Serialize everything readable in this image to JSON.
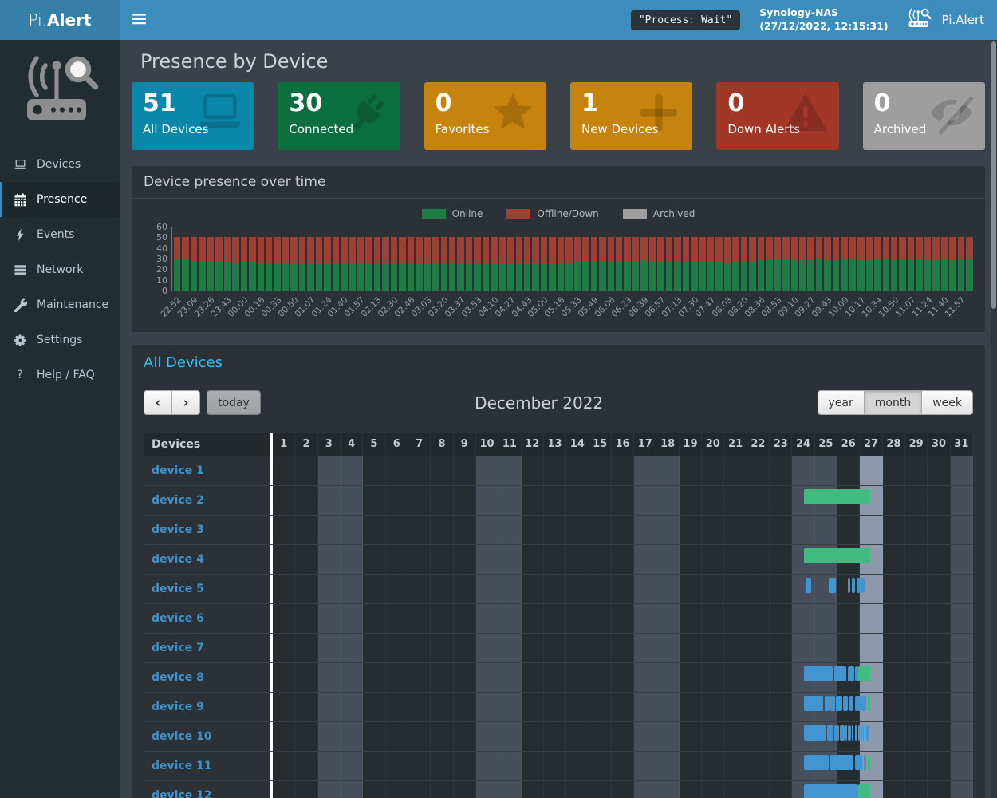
{
  "navbar": {
    "brand": {
      "prefix": "Pi.",
      "bold": "Alert"
    },
    "menu_icon": "hamburger-icon",
    "process_status": "\"Process: Wait\"",
    "host": {
      "name": "Synology-NAS",
      "datetime": "(27/12/2022, 12:15:31)"
    },
    "app": {
      "icon": "router-search-icon",
      "label": "Pi.Alert"
    }
  },
  "sidebar": {
    "logo_icon": "router-search-logo",
    "items": [
      {
        "key": "devices",
        "label": "Devices",
        "icon": "laptop-icon",
        "active": false
      },
      {
        "key": "presence",
        "label": "Presence",
        "icon": "calendar-icon",
        "active": true
      },
      {
        "key": "events",
        "label": "Events",
        "icon": "bolt-icon",
        "active": false
      },
      {
        "key": "network",
        "label": "Network",
        "icon": "server-icon",
        "active": false
      },
      {
        "key": "maintenance",
        "label": "Maintenance",
        "icon": "wrench-icon",
        "active": false
      },
      {
        "key": "settings",
        "label": "Settings",
        "icon": "gear-icon",
        "active": false
      },
      {
        "key": "help-faq",
        "label": "Help / FAQ",
        "icon": "question-icon",
        "active": false
      }
    ]
  },
  "page": {
    "title": "Presence by Device"
  },
  "infoboxes": [
    {
      "key": "all-devices",
      "value": "51",
      "label": "All Devices",
      "color": "#0a87a9",
      "icon": "laptop-icon"
    },
    {
      "key": "connected",
      "value": "30",
      "label": "Connected",
      "color": "#0b6e3e",
      "icon": "plug-icon"
    },
    {
      "key": "favorites",
      "value": "0",
      "label": "Favorites",
      "color": "#c6830e",
      "icon": "star-icon"
    },
    {
      "key": "new-devices",
      "value": "1",
      "label": "New Devices",
      "color": "#c6830e",
      "icon": "plus-icon"
    },
    {
      "key": "down-alerts",
      "value": "0",
      "label": "Down Alerts",
      "color": "#a23627",
      "icon": "warning-icon"
    },
    {
      "key": "archived",
      "value": "0",
      "label": "Archived",
      "color": "#9e9e9e",
      "icon": "eye-slash-icon"
    }
  ],
  "presence_chart": {
    "title": "Device presence over time",
    "legend": [
      {
        "label": "Online",
        "color": "#1e7d45"
      },
      {
        "label": "Offline/Down",
        "color": "#9e4034"
      },
      {
        "label": "Archived",
        "color": "#9e9e9e"
      }
    ],
    "chart_data": {
      "type": "bar",
      "stacked": true,
      "ylim": [
        0,
        60
      ],
      "y_ticks": [
        60,
        50,
        40,
        30,
        20,
        10,
        0
      ],
      "bars_per_label": 2,
      "x_labels": [
        "22:52",
        "23:09",
        "23:26",
        "23:43",
        "00:00",
        "00:16",
        "00:33",
        "00:50",
        "01:07",
        "01:24",
        "01:40",
        "01:57",
        "02:13",
        "02:30",
        "02:46",
        "03:03",
        "03:20",
        "03:37",
        "03:53",
        "04:10",
        "04:27",
        "04:43",
        "05:00",
        "05:16",
        "05:33",
        "05:49",
        "06:06",
        "06:23",
        "06:39",
        "06:57",
        "07:13",
        "07:30",
        "07:47",
        "08:03",
        "08:20",
        "08:36",
        "08:53",
        "09:10",
        "09:27",
        "09:43",
        "10:00",
        "10:17",
        "10:34",
        "10:50",
        "11:07",
        "11:24",
        "11:40",
        "11:57"
      ],
      "series": [
        {
          "name": "Online",
          "color": "#1e7d45",
          "values": [
            29,
            29,
            28,
            28,
            28,
            28,
            28,
            27,
            28,
            28,
            27,
            27,
            27,
            27,
            27,
            27,
            27,
            27,
            27,
            27,
            27,
            27,
            27,
            27,
            27,
            27,
            26,
            27,
            27,
            27,
            27,
            26,
            27,
            27,
            27,
            26,
            26,
            26,
            27,
            27,
            27,
            27,
            27,
            27,
            27,
            27,
            27,
            27,
            28,
            28,
            28,
            28,
            28,
            28,
            28,
            28,
            29,
            28,
            28,
            28,
            28,
            28,
            28,
            28,
            28,
            28,
            27,
            28,
            28,
            28,
            29,
            29,
            29,
            29,
            30,
            30,
            30,
            30,
            29,
            29,
            30,
            30,
            29,
            29,
            30,
            30,
            29,
            29,
            29,
            30,
            29,
            29,
            30,
            29,
            30,
            30
          ]
        },
        {
          "name": "Offline/Down",
          "color": "#9e4034",
          "values": [
            22,
            22,
            23,
            23,
            23,
            23,
            23,
            24,
            23,
            23,
            24,
            24,
            24,
            24,
            24,
            24,
            24,
            24,
            24,
            24,
            24,
            24,
            24,
            24,
            24,
            24,
            25,
            24,
            24,
            24,
            24,
            25,
            24,
            24,
            24,
            25,
            25,
            25,
            24,
            24,
            24,
            24,
            24,
            24,
            24,
            24,
            24,
            24,
            23,
            23,
            23,
            23,
            23,
            23,
            23,
            23,
            22,
            23,
            23,
            23,
            23,
            23,
            23,
            23,
            23,
            23,
            24,
            23,
            23,
            23,
            22,
            22,
            22,
            22,
            21,
            21,
            21,
            21,
            22,
            22,
            21,
            21,
            22,
            22,
            21,
            21,
            22,
            22,
            22,
            21,
            22,
            22,
            21,
            22,
            21,
            21
          ]
        },
        {
          "name": "Archived",
          "color": "#9e9e9e",
          "constant_value": 0
        }
      ]
    }
  },
  "calendar": {
    "section_title": "All Devices",
    "toolbar": {
      "prev_icon": "chevron-left-icon",
      "next_icon": "chevron-right-icon",
      "today_label": "today",
      "title": "December 2022",
      "views": [
        {
          "key": "year",
          "label": "year",
          "active": false
        },
        {
          "key": "month",
          "label": "month",
          "active": true
        },
        {
          "key": "week",
          "label": "week",
          "active": false
        }
      ]
    },
    "table": {
      "devices_header": "Devices",
      "num_days": 31,
      "weekend_days": [
        3,
        4,
        10,
        11,
        17,
        18,
        24,
        25,
        31
      ],
      "today_day": 27,
      "event_colors": {
        "online": "#4195d1",
        "connected_now": "#41bb80"
      },
      "rows": [
        {
          "name": "device 1",
          "events": []
        },
        {
          "name": "device 2",
          "events": [
            {
              "start": 24.52,
              "end": 27.45,
              "type": "connected_now"
            }
          ]
        },
        {
          "name": "device 3",
          "events": []
        },
        {
          "name": "device 4",
          "events": [
            {
              "start": 24.52,
              "end": 27.45,
              "type": "connected_now"
            }
          ]
        },
        {
          "name": "device 5",
          "events": [
            {
              "start": 24.6,
              "end": 24.85,
              "type": "online"
            },
            {
              "start": 25.62,
              "end": 25.94,
              "type": "online"
            },
            {
              "start": 26.47,
              "end": 26.58,
              "type": "online"
            },
            {
              "start": 26.65,
              "end": 26.76,
              "type": "online"
            },
            {
              "start": 26.85,
              "end": 26.97,
              "type": "online"
            },
            {
              "start": 27.0,
              "end": 27.2,
              "type": "online"
            }
          ]
        },
        {
          "name": "device 6",
          "events": []
        },
        {
          "name": "device 7",
          "events": []
        },
        {
          "name": "device 8",
          "events": [
            {
              "start": 24.52,
              "end": 25.8,
              "type": "online"
            },
            {
              "start": 25.84,
              "end": 26.4,
              "type": "online"
            },
            {
              "start": 26.44,
              "end": 26.75,
              "type": "online"
            },
            {
              "start": 26.78,
              "end": 26.9,
              "type": "online"
            },
            {
              "start": 26.93,
              "end": 27.45,
              "type": "connected_now"
            }
          ]
        },
        {
          "name": "device 9",
          "events": [
            {
              "start": 24.52,
              "end": 25.37,
              "type": "online"
            },
            {
              "start": 25.42,
              "end": 25.64,
              "type": "online"
            },
            {
              "start": 25.69,
              "end": 25.89,
              "type": "online"
            },
            {
              "start": 25.94,
              "end": 26.21,
              "type": "online"
            },
            {
              "start": 26.25,
              "end": 26.46,
              "type": "online"
            },
            {
              "start": 26.51,
              "end": 26.72,
              "type": "online"
            },
            {
              "start": 26.77,
              "end": 27.02,
              "type": "online"
            },
            {
              "start": 27.06,
              "end": 27.28,
              "type": "online"
            },
            {
              "start": 27.33,
              "end": 27.45,
              "type": "connected_now"
            }
          ]
        },
        {
          "name": "device 10",
          "events": [
            {
              "start": 24.52,
              "end": 25.49,
              "type": "online"
            },
            {
              "start": 25.54,
              "end": 25.81,
              "type": "online"
            },
            {
              "start": 25.86,
              "end": 26.07,
              "type": "online"
            },
            {
              "start": 26.11,
              "end": 26.31,
              "type": "online"
            },
            {
              "start": 26.36,
              "end": 26.43,
              "type": "online"
            },
            {
              "start": 26.46,
              "end": 26.61,
              "type": "online"
            },
            {
              "start": 26.64,
              "end": 26.72,
              "type": "online"
            },
            {
              "start": 26.76,
              "end": 26.86,
              "type": "online"
            },
            {
              "start": 26.9,
              "end": 26.98,
              "type": "online"
            },
            {
              "start": 27.02,
              "end": 27.1,
              "type": "online"
            },
            {
              "start": 27.14,
              "end": 27.18,
              "type": "online"
            },
            {
              "start": 27.21,
              "end": 27.25,
              "type": "online"
            },
            {
              "start": 27.28,
              "end": 27.42,
              "type": "online"
            }
          ]
        },
        {
          "name": "device 11",
          "events": [
            {
              "start": 24.52,
              "end": 25.6,
              "type": "online"
            },
            {
              "start": 25.65,
              "end": 26.72,
              "type": "online"
            },
            {
              "start": 26.77,
              "end": 27.1,
              "type": "online"
            },
            {
              "start": 27.15,
              "end": 27.28,
              "type": "online"
            },
            {
              "start": 27.33,
              "end": 27.45,
              "type": "connected_now"
            }
          ]
        },
        {
          "name": "device 12",
          "events": [
            {
              "start": 24.52,
              "end": 26.9,
              "type": "online"
            },
            {
              "start": 26.93,
              "end": 27.45,
              "type": "connected_now"
            }
          ]
        }
      ]
    }
  }
}
